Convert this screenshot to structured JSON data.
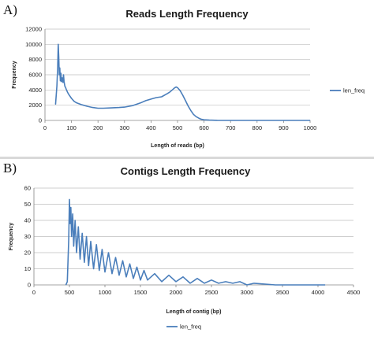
{
  "panels": {
    "a_label": "A)",
    "b_label": "B)"
  },
  "colors": {
    "series": "#4a7ebb",
    "grid": "#bfbfbf",
    "axis": "#868686"
  },
  "chart_data": [
    {
      "type": "line",
      "title": "Reads Length Frequency",
      "xlabel": "Length of reads (bp)",
      "ylabel": "Frequency",
      "xlim": [
        0,
        1000
      ],
      "ylim": [
        0,
        12000
      ],
      "x_ticks": [
        0,
        100,
        200,
        300,
        400,
        500,
        600,
        700,
        800,
        900,
        1000
      ],
      "y_ticks": [
        0,
        2000,
        4000,
        6000,
        8000,
        10000,
        12000
      ],
      "grid": "horizontal",
      "legend": "right",
      "series": [
        {
          "name": "len_freq",
          "x": [
            40,
            45,
            48,
            50,
            52,
            54,
            56,
            58,
            60,
            62,
            65,
            68,
            70,
            72,
            75,
            78,
            80,
            85,
            90,
            100,
            110,
            120,
            140,
            160,
            180,
            200,
            220,
            250,
            280,
            300,
            330,
            360,
            380,
            400,
            420,
            440,
            460,
            470,
            480,
            490,
            495,
            500,
            510,
            520,
            530,
            540,
            550,
            560,
            570,
            580,
            590,
            600,
            620,
            650,
            700,
            800,
            900,
            1000
          ],
          "y": [
            2100,
            4500,
            7000,
            10000,
            8300,
            6000,
            6900,
            5200,
            6200,
            5100,
            5600,
            5000,
            6000,
            5100,
            4500,
            4300,
            4100,
            3700,
            3400,
            2900,
            2500,
            2300,
            2050,
            1850,
            1700,
            1600,
            1600,
            1650,
            1700,
            1750,
            1950,
            2300,
            2600,
            2800,
            3000,
            3100,
            3500,
            3700,
            4000,
            4300,
            4400,
            4300,
            3900,
            3300,
            2600,
            1900,
            1300,
            800,
            500,
            300,
            150,
            80,
            40,
            15,
            5,
            0,
            0,
            0
          ]
        }
      ]
    },
    {
      "type": "line",
      "title": "Contigs Length Frequency",
      "xlabel": "Length of contig (bp)",
      "ylabel": "Frequency",
      "xlim": [
        0,
        4500
      ],
      "ylim": [
        0,
        60
      ],
      "x_ticks": [
        0,
        500,
        1000,
        1500,
        2000,
        2500,
        3000,
        3500,
        4000,
        4500
      ],
      "y_ticks": [
        0,
        10,
        20,
        30,
        40,
        50,
        60
      ],
      "grid": "horizontal",
      "legend": "bottom",
      "series": [
        {
          "name": "len_freq",
          "x": [
            450,
            470,
            490,
            500,
            510,
            520,
            530,
            545,
            560,
            580,
            600,
            625,
            650,
            680,
            710,
            740,
            770,
            800,
            840,
            880,
            920,
            960,
            1000,
            1050,
            1100,
            1150,
            1200,
            1250,
            1300,
            1350,
            1400,
            1450,
            1500,
            1550,
            1600,
            1700,
            1800,
            1900,
            2000,
            2100,
            2200,
            2300,
            2400,
            2500,
            2600,
            2700,
            2800,
            2900,
            3000,
            3100,
            3400,
            3800,
            4100
          ],
          "y": [
            0,
            2,
            28,
            53,
            38,
            48,
            30,
            44,
            24,
            40,
            20,
            36,
            16,
            32,
            14,
            30,
            12,
            27,
            10,
            25,
            9,
            22,
            8,
            20,
            7,
            17,
            6,
            15,
            5,
            13,
            4,
            11,
            3,
            9,
            3,
            7,
            2,
            6,
            2,
            5,
            1,
            4,
            1,
            3,
            1,
            2,
            1,
            2,
            0,
            1,
            0,
            0,
            0
          ]
        }
      ]
    }
  ]
}
